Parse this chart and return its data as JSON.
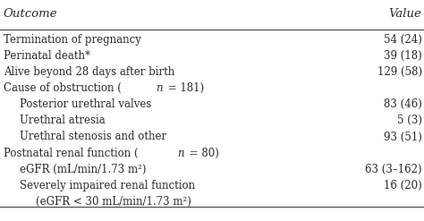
{
  "header_left": "Outcome",
  "header_right": "Value",
  "rows": [
    {
      "indent": 0,
      "left": "Termination of pregnancy",
      "right": "54 (24)"
    },
    {
      "indent": 0,
      "left": "Perinatal death*",
      "right": "39 (18)"
    },
    {
      "indent": 0,
      "left": "Alive beyond 28 days after birth",
      "right": "129 (58)"
    },
    {
      "indent": 0,
      "left": "Cause of obstruction (n = 181)",
      "right": ""
    },
    {
      "indent": 1,
      "left": "Posterior urethral valves",
      "right": "83 (46)"
    },
    {
      "indent": 1,
      "left": "Urethral atresia",
      "right": "5 (3)"
    },
    {
      "indent": 1,
      "left": "Urethral stenosis and other",
      "right": "93 (51)"
    },
    {
      "indent": 0,
      "left": "Postnatal renal function (n = 80)",
      "right": ""
    },
    {
      "indent": 1,
      "left": "eGFR (mL/min/1.73 m²)",
      "right": "63 (3–162)"
    },
    {
      "indent": 1,
      "left": "Severely impaired renal function",
      "right": "16 (20)"
    },
    {
      "indent": 2,
      "left": "(eGFR < 30 mL/min/1.73 m²)",
      "right": ""
    }
  ],
  "background_color": "#ffffff",
  "text_color": "#2a2a2a",
  "font_size": 8.5,
  "header_font_size": 9.5,
  "indent_size": 0.038
}
